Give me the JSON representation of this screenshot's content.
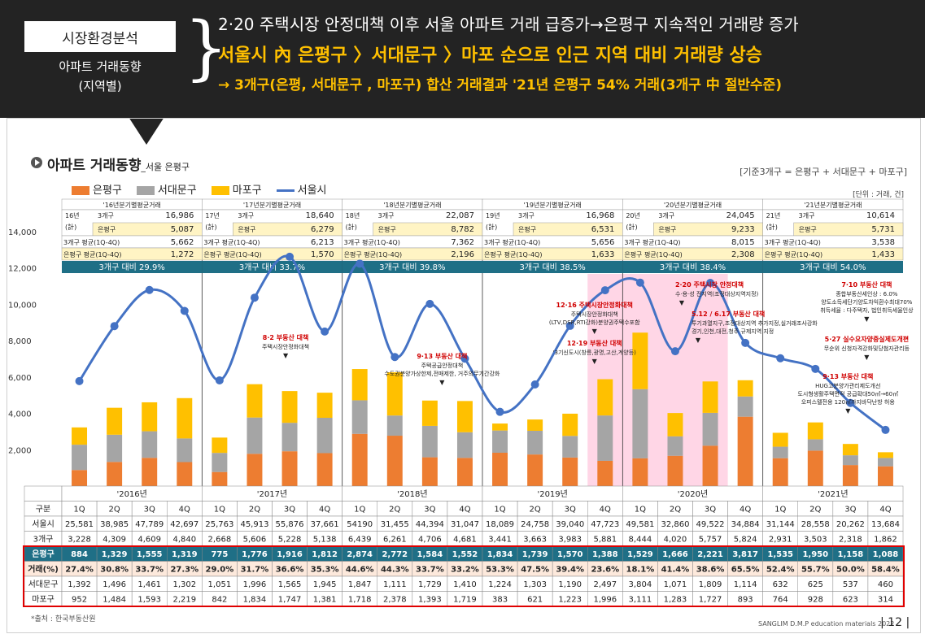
{
  "header": {
    "label": "시장환경분석",
    "sublabel_1": "아파트 거래동향",
    "sublabel_2": "(지역별)",
    "line1": "2·20 주택시장 안정대책 이후 서울 아파트 거래 급증가→은평구 지속적인 거래량 증가",
    "line2": "서울시 內 은평구 〉서대문구 〉마포 순으로 인근 지역 대비 거래량 상승",
    "line3": "→ 3개구(은평, 서대문구 , 마포구) 합산 거래결과 '21년 은평구 54% 거래(3개구 中 절반수준)"
  },
  "section": {
    "title": "아파트 거래동향",
    "subtitle": "_서울 은평구",
    "basis": "[기준3개구 = 은평구 + 서대문구 + 마포구]",
    "unit": "[단위 : 거래, 건]"
  },
  "legend": [
    {
      "label": "은평구",
      "color": "#ed7d31"
    },
    {
      "label": "서대문구",
      "color": "#a5a5a5"
    },
    {
      "label": "마포구",
      "color": "#ffc000"
    },
    {
      "label": "서울시",
      "color": "#4472c4"
    }
  ],
  "chart_data": {
    "type": "bar",
    "y_ticks": [
      "14,000",
      "12,000",
      "10,000",
      "8,000",
      "6,000",
      "4,000",
      "2,000"
    ],
    "ylim": [
      0,
      14000
    ],
    "y2lim": [
      0,
      62000
    ],
    "years": [
      "'2016년",
      "'2017년",
      "'2018년",
      "'2019년",
      "'2020년",
      "'2021년"
    ],
    "quarters": [
      "1Q",
      "2Q",
      "3Q",
      "4Q"
    ],
    "categories": [
      "16-1Q",
      "16-2Q",
      "16-3Q",
      "16-4Q",
      "17-1Q",
      "17-2Q",
      "17-3Q",
      "17-4Q",
      "18-1Q",
      "18-2Q",
      "18-3Q",
      "18-4Q",
      "19-1Q",
      "19-2Q",
      "19-3Q",
      "19-4Q",
      "20-1Q",
      "20-2Q",
      "20-3Q",
      "20-4Q",
      "21-1Q",
      "21-2Q",
      "21-3Q",
      "21-4Q"
    ],
    "series": [
      {
        "name": "은평구",
        "type": "bar",
        "values": [
          884,
          1329,
          1555,
          1319,
          775,
          1776,
          1916,
          1812,
          2874,
          2772,
          1584,
          1552,
          1834,
          1739,
          1570,
          1388,
          1529,
          1666,
          2221,
          3817,
          1535,
          1950,
          1158,
          1088
        ]
      },
      {
        "name": "서대문구",
        "type": "bar",
        "values": [
          1392,
          1496,
          1461,
          1302,
          1051,
          1996,
          1565,
          1945,
          1847,
          1111,
          1729,
          1410,
          1224,
          1303,
          1190,
          2497,
          3804,
          1071,
          1809,
          1114,
          632,
          625,
          537,
          460
        ]
      },
      {
        "name": "마포구",
        "type": "bar",
        "values": [
          952,
          1484,
          1593,
          2219,
          842,
          1834,
          1747,
          1381,
          1718,
          2378,
          1393,
          1719,
          383,
          621,
          1223,
          1996,
          3111,
          1283,
          1727,
          893,
          764,
          928,
          623,
          314
        ]
      },
      {
        "name": "서울시",
        "type": "line",
        "values": [
          25581,
          38985,
          47789,
          42697,
          25763,
          45913,
          55876,
          37661,
          54190,
          31455,
          44394,
          31047,
          18089,
          24758,
          39040,
          47723,
          49581,
          32860,
          49522,
          34884,
          31144,
          28558,
          20262,
          13684
        ]
      }
    ],
    "highlight_columns": [
      15,
      16,
      17,
      18
    ],
    "year_summary": [
      {
        "label": "'16년분기별평균거래",
        "yr": "16년",
        "sum": "(計)",
        "total_label": "3개구",
        "total": "16,986",
        "ep_label": "은평구",
        "ep": "5,087",
        "avg3_label": "3개구 평균(1Q-4Q)",
        "avg3": "5,662",
        "avgep_label": "은평구 평균(1Q-4Q)",
        "avgep": "1,272",
        "ratio": "3개구 대비 29.9%"
      },
      {
        "label": "'17년분기별평균거래",
        "yr": "17년",
        "sum": "(計)",
        "total_label": "3개구",
        "total": "18,640",
        "ep_label": "은평구",
        "ep": "6,279",
        "avg3_label": "3개구 평균(1Q-4Q)",
        "avg3": "6,213",
        "avgep_label": "은평구 평균(1Q-4Q)",
        "avgep": "1,570",
        "ratio": "3개구 대비 33.7%"
      },
      {
        "label": "'18년분기별평균거래",
        "yr": "18년",
        "sum": "(計)",
        "total_label": "3개구",
        "total": "22,087",
        "ep_label": "은평구",
        "ep": "8,782",
        "avg3_label": "3개구 평균(1Q-4Q)",
        "avg3": "7,362",
        "avgep_label": "은평구 평균(1Q-4Q)",
        "avgep": "2,196",
        "ratio": "3개구 대비 39.8%"
      },
      {
        "label": "'19년분기별평균거래",
        "yr": "19년",
        "sum": "(計)",
        "total_label": "3개구",
        "total": "16,968",
        "ep_label": "은평구",
        "ep": "6,531",
        "avg3_label": "3개구 평균(1Q-4Q)",
        "avg3": "5,656",
        "avgep_label": "은평구 평균(1Q-4Q)",
        "avgep": "1,633",
        "ratio": "3개구 대비 38.5%"
      },
      {
        "label": "'20년분기별평균거래",
        "yr": "20년",
        "sum": "(計)",
        "total_label": "3개구",
        "total": "24,045",
        "ep_label": "은평구",
        "ep": "9,233",
        "avg3_label": "3개구 평균(1Q-4Q)",
        "avg3": "8,015",
        "avgep_label": "은평구 평균(1Q-4Q)",
        "avgep": "2,308",
        "ratio": "3개구 대비 38.4%"
      },
      {
        "label": "'21년분기별평균거래",
        "yr": "21년",
        "sum": "(計)",
        "total_label": "3개구",
        "total": "10,614",
        "ep_label": "은평구",
        "ep": "5,731",
        "avg3_label": "3개구 평균(1Q-4Q)",
        "avg3": "3,538",
        "avgep_label": "은평구 평균(1Q-4Q)",
        "avgep": "1,433",
        "ratio": "3개구 대비 54.0%"
      }
    ],
    "annotations": [
      {
        "col": 6,
        "title": "8·2 부동산 대책",
        "lines": [
          "주택시장안정화대책"
        ]
      },
      {
        "col": 10,
        "title": "9·13 부동산 대책",
        "lines": [
          "주택공급안정대책",
          "수도권분양가상한제,전매제한, 거주의무기간강화"
        ]
      },
      {
        "col": 14,
        "title": "12·16 주택시장안정화대책",
        "lines": [
          "주택시장안정화대책",
          "(LTV,DSR,RTI강화)분양권주택수포함"
        ]
      },
      {
        "col": 14,
        "title": "12·19 부동산 대책",
        "lines": [
          "'3기신도시(창릉,광명,고산,계양등)"
        ]
      },
      {
        "col": 17,
        "title": "2·20 주택시장 안정대책",
        "lines": [
          "수·용·성 전지역(조정대상지역지정)"
        ]
      },
      {
        "col": 17,
        "title": "5.12 / 6.17 부동산 대책",
        "lines": [
          "투기과열지구,조정대상지역 추가지정,실거래조사강화",
          "경기,인천,대전,청주 규제지역 지정"
        ]
      },
      {
        "col": 22,
        "title": "7·10 부동산 대책",
        "lines": [
          "종합부동산세인상 : 6.0%",
          "양도소득세단기양도차익환수최대70%",
          "취득세율 : 다주택자, 법인취득세율인상"
        ]
      },
      {
        "col": 22,
        "title": "5·27 실수요자양중실제도개편",
        "lines": [
          "무순위 신청자격강화및당첨자관리등"
        ]
      },
      {
        "col": 21,
        "title": "9·13 부동산 대책",
        "lines": [
          "HUG고분양가관리제도개선",
          "도시형생활주택면적 공급확대50㎡→60㎡",
          "오피스텔전용 120㎡까지바닥난방 허용"
        ]
      }
    ],
    "table": {
      "head_label": "구분",
      "rows": [
        {
          "label": "서울시",
          "values": [
            "25,581",
            "38,985",
            "47,789",
            "42,697",
            "25,763",
            "45,913",
            "55,876",
            "37,661",
            "54190",
            "31,455",
            "44,394",
            "31,047",
            "18,089",
            "24,758",
            "39,040",
            "47,723",
            "49,581",
            "32,860",
            "49,522",
            "34,884",
            "31,144",
            "28,558",
            "20,262",
            "13,684"
          ]
        },
        {
          "label": "3개구",
          "values": [
            "3,228",
            "4,309",
            "4,609",
            "4,840",
            "2,668",
            "5,606",
            "5,228",
            "5,138",
            "6,439",
            "6,261",
            "4,706",
            "4,681",
            "3,441",
            "3,663",
            "3,983",
            "5,881",
            "8,444",
            "4,020",
            "5,757",
            "5,824",
            "2,931",
            "3,503",
            "2,318",
            "1,862"
          ]
        },
        {
          "label": "은평구",
          "values": [
            "884",
            "1,329",
            "1,555",
            "1,319",
            "775",
            "1,776",
            "1,916",
            "1,812",
            "2,874",
            "2,772",
            "1,584",
            "1,552",
            "1,834",
            "1,739",
            "1,570",
            "1,388",
            "1,529",
            "1,666",
            "2,221",
            "3,817",
            "1,535",
            "1,950",
            "1,158",
            "1,088"
          ]
        },
        {
          "label": "거래(%)",
          "values": [
            "27.4%",
            "30.8%",
            "33.7%",
            "27.3%",
            "29.0%",
            "31.7%",
            "36.6%",
            "35.3%",
            "44.6%",
            "44.3%",
            "33.7%",
            "33.2%",
            "53.3%",
            "47.5%",
            "39.4%",
            "23.6%",
            "18.1%",
            "41.4%",
            "38.6%",
            "65.5%",
            "52.4%",
            "55.7%",
            "50.0%",
            "58.4%"
          ]
        },
        {
          "label": "서대문구",
          "values": [
            "1,392",
            "1,496",
            "1,461",
            "1,302",
            "1,051",
            "1,996",
            "1,565",
            "1,945",
            "1,847",
            "1,111",
            "1,729",
            "1,410",
            "1,224",
            "1,303",
            "1,190",
            "2,497",
            "3,804",
            "1,071",
            "1,809",
            "1,114",
            "632",
            "625",
            "537",
            "460"
          ]
        },
        {
          "label": "마포구",
          "values": [
            "952",
            "1,484",
            "1,593",
            "2,219",
            "842",
            "1,834",
            "1,747",
            "1,381",
            "1,718",
            "2,378",
            "1,393",
            "1,719",
            "383",
            "621",
            "1,223",
            "1,996",
            "3,111",
            "1,283",
            "1,727",
            "893",
            "764",
            "928",
            "623",
            "314"
          ]
        }
      ]
    }
  },
  "footer": {
    "source": "*출처 : 한국부동산원",
    "brand": "SANGLIM D.M.P education materials 2022",
    "page": "12"
  }
}
